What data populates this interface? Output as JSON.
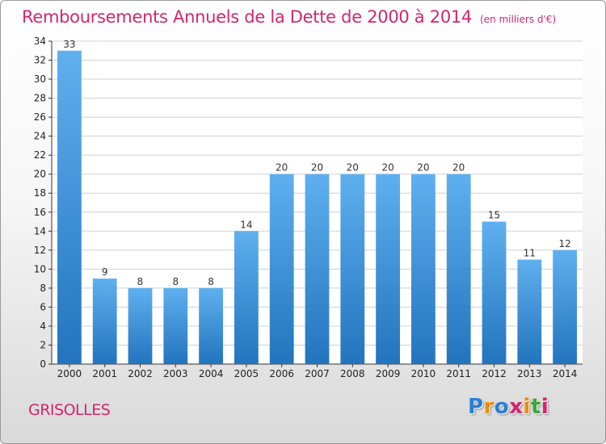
{
  "page": {
    "title": "Remboursements Annuels de la Dette de 2000 à 2014",
    "unit": "(en milliers d'€)",
    "commune": "GRISOLLES",
    "logo": [
      "P",
      "r",
      "o",
      "x",
      "i",
      "t",
      "i"
    ],
    "logo_colors": [
      "#2a7fd4",
      "#f08a00",
      "#2a7fd4",
      "#d2266f",
      "#f08a00",
      "#3aa63a",
      "#d2266f"
    ]
  },
  "colors": {
    "title": "#d2266f",
    "bar_top": "#5fb0ef",
    "bar_bottom": "#2274bd",
    "grid": "#d0d0d0",
    "axis": "#333333"
  },
  "chart_data": {
    "type": "bar",
    "title": "Remboursements Annuels de la Dette de 2000 à 2014",
    "categories": [
      "2000",
      "2001",
      "2002",
      "2003",
      "2004",
      "2005",
      "2006",
      "2007",
      "2008",
      "2009",
      "2010",
      "2011",
      "2012",
      "2013",
      "2014"
    ],
    "values": [
      33,
      9,
      8,
      8,
      8,
      14,
      20,
      20,
      20,
      20,
      20,
      20,
      15,
      11,
      12
    ],
    "xlabel": "",
    "ylabel": "",
    "ylim": [
      0,
      34
    ],
    "ytick_step": 2,
    "grid": true,
    "legend": "none"
  }
}
